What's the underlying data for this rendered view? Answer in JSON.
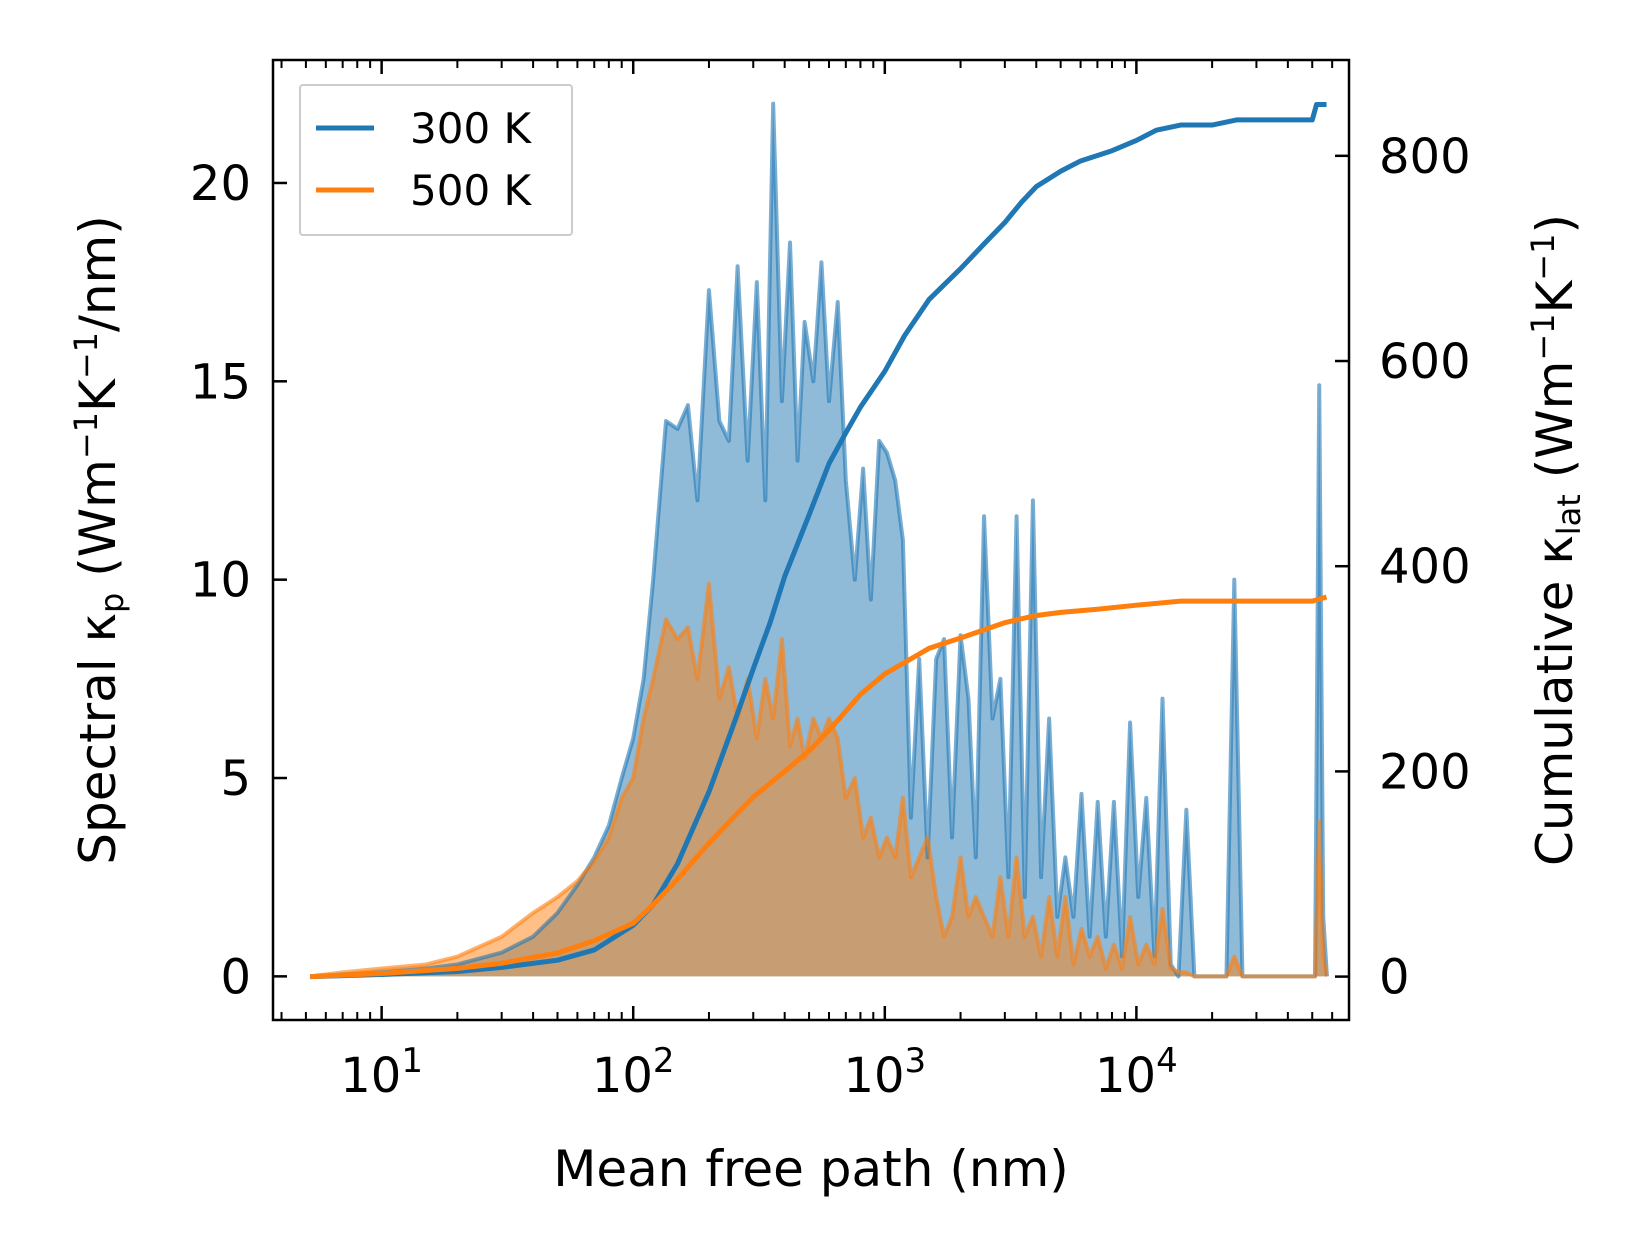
{
  "chart_data": {
    "type": "line",
    "title": "",
    "xlabel": "Mean free path (nm)",
    "ylabel_left": {
      "prefix": "Spectral κ",
      "subscript": "p",
      "mid": " (Wm",
      "sup1": "−1",
      "k": "K",
      "sup2": "−1",
      "suffix": "/nm)"
    },
    "ylabel_right": {
      "prefix": "Cumulative κ",
      "subscript": "lat",
      "mid": " (Wm",
      "sup1": "−1",
      "k": "K",
      "sup2": "−1",
      "suffix": ")"
    },
    "x_scale": "log",
    "xlim": [
      3.7,
      70000
    ],
    "ylim_left": [
      -1.1,
      23.1
    ],
    "ylim_right": [
      -42.3,
      893.4
    ],
    "x_ticks": [
      {
        "value": 10,
        "base": "10",
        "exp": "1"
      },
      {
        "value": 100,
        "base": "10",
        "exp": "2"
      },
      {
        "value": 1000,
        "base": "10",
        "exp": "3"
      },
      {
        "value": 10000,
        "base": "10",
        "exp": "4"
      }
    ],
    "y_left_ticks": [
      0,
      5,
      10,
      15,
      20
    ],
    "y_right_ticks": [
      0,
      200,
      400,
      600,
      800
    ],
    "legend": {
      "location": "top-left",
      "entries": [
        {
          "label": "300 K",
          "color": "#1f77b4"
        },
        {
          "label": "500 K",
          "color": "#ff7f0e"
        }
      ]
    },
    "series": [
      {
        "name": "300 K spectral",
        "axis": "left",
        "color": "#1f77b4",
        "fill": true,
        "x": [
          5.2,
          7,
          10,
          15,
          20,
          30,
          40,
          50,
          60,
          70,
          80,
          90,
          100,
          110,
          120,
          135,
          150,
          165,
          180,
          200,
          220,
          240,
          260,
          285,
          310,
          335,
          360,
          390,
          420,
          450,
          480,
          520,
          560,
          600,
          650,
          700,
          760,
          820,
          880,
          950,
          1020,
          1100,
          1180,
          1270,
          1370,
          1480,
          1600,
          1720,
          1850,
          2000,
          2150,
          2300,
          2480,
          2680,
          2880,
          3100,
          3340,
          3600,
          3880,
          4180,
          4500,
          4850,
          5220,
          5620,
          6050,
          6520,
          7020,
          7560,
          8140,
          8770,
          9440,
          10170,
          10950,
          11800,
          12700,
          13700,
          14700,
          15800,
          17000,
          18300,
          19700,
          21200,
          22800,
          24500,
          26400,
          28400,
          30600,
          33000,
          35500,
          38200,
          41200,
          44300,
          47700,
          51300,
          53300,
          55300,
          57200
        ],
        "values": [
          0,
          0.05,
          0.1,
          0.2,
          0.3,
          0.6,
          1.0,
          1.6,
          2.3,
          3.0,
          3.8,
          5.0,
          6.0,
          7.5,
          10.0,
          14.0,
          13.8,
          14.4,
          12.0,
          17.3,
          14.0,
          13.5,
          17.9,
          13.0,
          17.5,
          12.0,
          22.0,
          14.5,
          18.5,
          13.0,
          16.5,
          15.0,
          18.0,
          14.5,
          17.0,
          12.5,
          10.0,
          12.8,
          9.5,
          13.5,
          13.2,
          12.5,
          11.0,
          4.0,
          8.0,
          3.0,
          8.0,
          8.5,
          3.5,
          8.6,
          7.0,
          3.0,
          11.6,
          6.5,
          7.5,
          2.5,
          11.6,
          2.0,
          12.0,
          2.5,
          6.5,
          1.5,
          3.0,
          1.5,
          4.6,
          1.0,
          4.4,
          1.0,
          4.4,
          0.5,
          6.4,
          2.0,
          4.5,
          0.5,
          7.0,
          0.3,
          0,
          4.2,
          0,
          0,
          0,
          0,
          0,
          10.0,
          0,
          0,
          0,
          0,
          0,
          0,
          0,
          0,
          0,
          0,
          14.9,
          1.5,
          0
        ]
      },
      {
        "name": "500 K spectral",
        "axis": "left",
        "color": "#ff7f0e",
        "fill": true,
        "x": [
          5.2,
          7,
          10,
          15,
          20,
          30,
          40,
          50,
          60,
          70,
          80,
          90,
          100,
          110,
          120,
          135,
          150,
          165,
          180,
          200,
          220,
          240,
          260,
          285,
          310,
          335,
          360,
          390,
          420,
          450,
          480,
          520,
          560,
          600,
          650,
          700,
          760,
          820,
          880,
          950,
          1020,
          1100,
          1180,
          1270,
          1370,
          1480,
          1600,
          1720,
          1850,
          2000,
          2150,
          2300,
          2480,
          2680,
          2880,
          3100,
          3340,
          3600,
          3880,
          4180,
          4500,
          4850,
          5220,
          5620,
          6050,
          6520,
          7020,
          7560,
          8140,
          8770,
          9440,
          10170,
          10950,
          11800,
          12700,
          13700,
          14700,
          15800,
          17000,
          18300,
          19700,
          21200,
          22800,
          24500,
          26400,
          28400,
          30600,
          33000,
          35500,
          38200,
          41200,
          44300,
          47700,
          51300,
          53300,
          55300,
          57200
        ],
        "values": [
          0,
          0.1,
          0.2,
          0.3,
          0.5,
          1.0,
          1.6,
          2.0,
          2.4,
          2.9,
          3.5,
          4.5,
          5.0,
          6.5,
          7.5,
          9.0,
          8.5,
          8.8,
          7.5,
          9.9,
          7.0,
          7.8,
          6.5,
          7.5,
          6.0,
          7.5,
          6.5,
          8.5,
          5.8,
          6.5,
          5.5,
          6.5,
          6.0,
          6.5,
          6.0,
          4.5,
          5.0,
          3.5,
          4.0,
          3.0,
          3.5,
          3.0,
          4.5,
          2.5,
          3.0,
          3.5,
          2.0,
          1.0,
          1.5,
          3.0,
          1.5,
          2.0,
          1.5,
          1.0,
          2.5,
          1.0,
          3.0,
          1.0,
          1.5,
          0.5,
          2.0,
          0.5,
          2.0,
          0.3,
          1.2,
          0.5,
          1.0,
          0.2,
          0.8,
          0.2,
          1.5,
          0.3,
          0.8,
          0.3,
          1.7,
          0.2,
          0.1,
          0.1,
          0,
          0,
          0,
          0,
          0,
          0.5,
          0,
          0,
          0,
          0,
          0,
          0,
          0,
          0,
          0,
          0,
          3.9,
          0.5,
          0
        ]
      },
      {
        "name": "300 K cumulative",
        "axis": "right",
        "color": "#1f77b4",
        "fill": false,
        "x": [
          5.2,
          10,
          20,
          30,
          50,
          70,
          100,
          120,
          150,
          200,
          250,
          300,
          350,
          400,
          500,
          600,
          700,
          800,
          1000,
          1200,
          1500,
          2000,
          2500,
          3000,
          3500,
          4000,
          5000,
          6000,
          8000,
          10000,
          12000,
          15000,
          20000,
          25000,
          30000,
          40000,
          50000,
          52000,
          57000
        ],
        "values": [
          0,
          2,
          5,
          9,
          16,
          26,
          50,
          70,
          110,
          180,
          245,
          300,
          345,
          390,
          450,
          500,
          530,
          555,
          590,
          625,
          660,
          690,
          715,
          735,
          755,
          770,
          785,
          795,
          805,
          815,
          825,
          830,
          830,
          835,
          835,
          835,
          835,
          850,
          850
        ]
      },
      {
        "name": "500 K cumulative",
        "axis": "right",
        "color": "#ff7f0e",
        "fill": false,
        "x": [
          5.2,
          10,
          20,
          30,
          50,
          70,
          100,
          120,
          150,
          200,
          250,
          300,
          400,
          500,
          600,
          800,
          1000,
          1500,
          2000,
          3000,
          4000,
          5000,
          7000,
          10000,
          15000,
          20000,
          30000,
          50000,
          57000
        ],
        "values": [
          0,
          3,
          8,
          13,
          23,
          35,
          52,
          70,
          95,
          130,
          155,
          175,
          200,
          220,
          240,
          275,
          295,
          320,
          330,
          345,
          352,
          355,
          358,
          362,
          366,
          366,
          366,
          366,
          370
        ]
      }
    ]
  }
}
